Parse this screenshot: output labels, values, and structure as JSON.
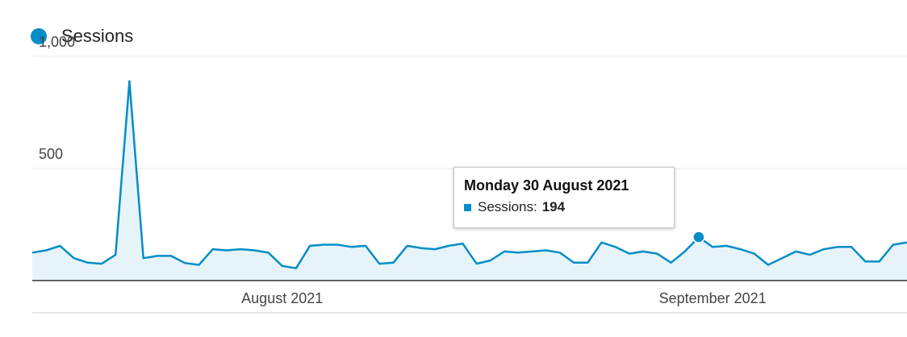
{
  "colors": {
    "series": "#058dc7",
    "area": "#e6f4fa",
    "grid": "#ebebeb",
    "axis": "#333333"
  },
  "chart_data": {
    "type": "area",
    "title": "",
    "xlabel": "",
    "ylabel": "",
    "ylim": [
      0,
      1000
    ],
    "yticks": [
      {
        "value": 500,
        "label": "500"
      },
      {
        "value": 1000,
        "label": "1,000"
      }
    ],
    "xticks": [
      {
        "index": 18,
        "label": "August 2021"
      },
      {
        "index": 49,
        "label": "September 2021"
      }
    ],
    "grid": true,
    "legend": "top-left",
    "series": [
      {
        "name": "Sessions",
        "values": [
          125,
          135,
          155,
          100,
          80,
          75,
          115,
          890,
          100,
          110,
          110,
          78,
          70,
          140,
          135,
          140,
          135,
          125,
          65,
          55,
          155,
          160,
          160,
          150,
          155,
          75,
          80,
          155,
          145,
          140,
          155,
          165,
          75,
          90,
          130,
          125,
          130,
          135,
          125,
          80,
          80,
          170,
          150,
          120,
          130,
          120,
          80,
          130,
          194,
          150,
          155,
          140,
          120,
          70,
          100,
          130,
          115,
          140,
          150,
          150,
          85,
          85,
          160,
          170
        ]
      }
    ],
    "highlight": {
      "index": 48,
      "date": "Monday 30 August 2021",
      "series": "Sessions",
      "label": "Sessions:",
      "value": "194"
    }
  }
}
